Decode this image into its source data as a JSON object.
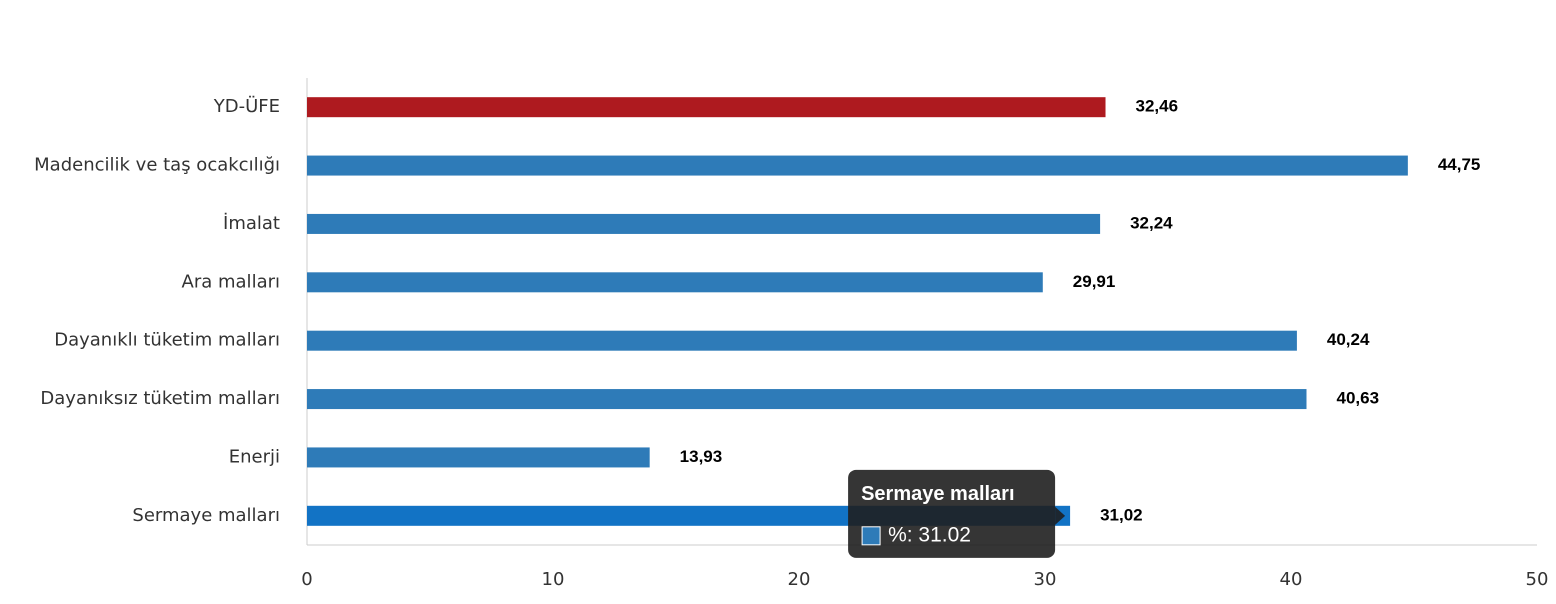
{
  "chart_data": {
    "type": "bar",
    "orientation": "horizontal",
    "categories": [
      "YD-ÜFE",
      "Madencilik ve taş ocakcılığı",
      "İmalat",
      "Ara malları",
      "Dayanıklı tüketim malları",
      "Dayanıksız tüketim malları",
      "Enerji",
      "Sermaye malları"
    ],
    "series": [
      {
        "name": "%",
        "values": [
          32.46,
          44.75,
          32.24,
          29.91,
          40.24,
          40.63,
          13.93,
          31.02
        ],
        "value_labels": [
          "32,46",
          "44,75",
          "32,24",
          "29,91",
          "40,24",
          "40,63",
          "13,93",
          "31,02"
        ],
        "colors": [
          "#ae1a1f",
          "#2e7bb8",
          "#2e7bb8",
          "#2e7bb8",
          "#2e7bb8",
          "#2e7bb8",
          "#2e7bb8",
          "#1273c5"
        ],
        "color": "#2e7bb8"
      }
    ],
    "xlim": [
      0,
      50
    ],
    "xticks": [
      0,
      10,
      20,
      30,
      40,
      50
    ],
    "tooltip": {
      "category_index": 7,
      "text": "%: 31.02"
    }
  }
}
